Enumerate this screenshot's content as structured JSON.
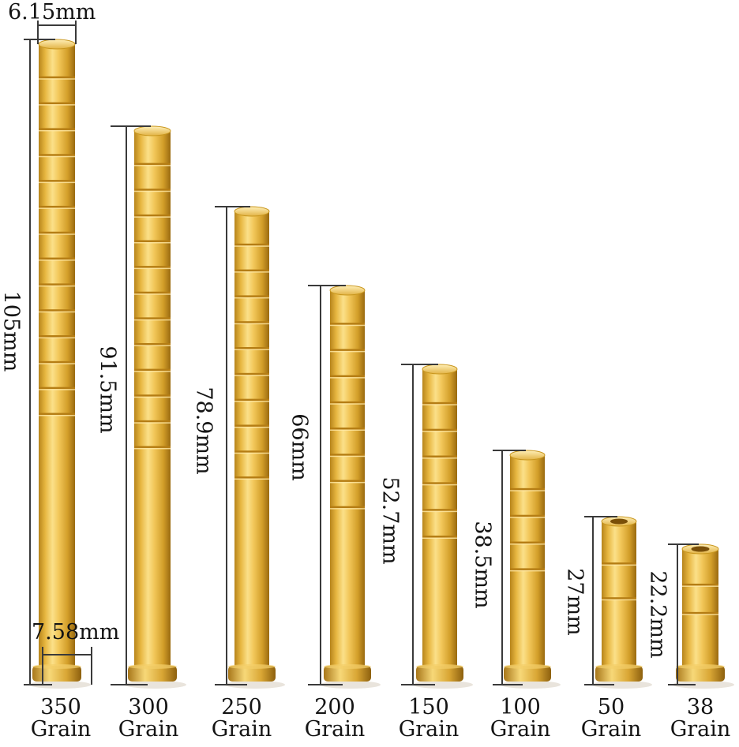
{
  "dimensions": {
    "top_diameter": "6.15mm",
    "base_diameter": "7.58mm"
  },
  "inserts": [
    {
      "weight": "350",
      "unit": "Grain",
      "length": "105mm"
    },
    {
      "weight": "300",
      "unit": "Grain",
      "length": "91.5mm"
    },
    {
      "weight": "250",
      "unit": "Grain",
      "length": "78.9mm"
    },
    {
      "weight": "200",
      "unit": "Grain",
      "length": "66mm"
    },
    {
      "weight": "150",
      "unit": "Grain",
      "length": "52.7mm"
    },
    {
      "weight": "100",
      "unit": "Grain",
      "length": "38.5mm"
    },
    {
      "weight": "50",
      "unit": "Grain",
      "length": "27mm"
    },
    {
      "weight": "38",
      "unit": "Grain",
      "length": "22.2mm"
    }
  ],
  "colors": {
    "brass_light": "#f6d36a",
    "brass_mid": "#dcaa2c",
    "brass_dark": "#9a6a10",
    "dimension_line": "#3a3a3a"
  }
}
